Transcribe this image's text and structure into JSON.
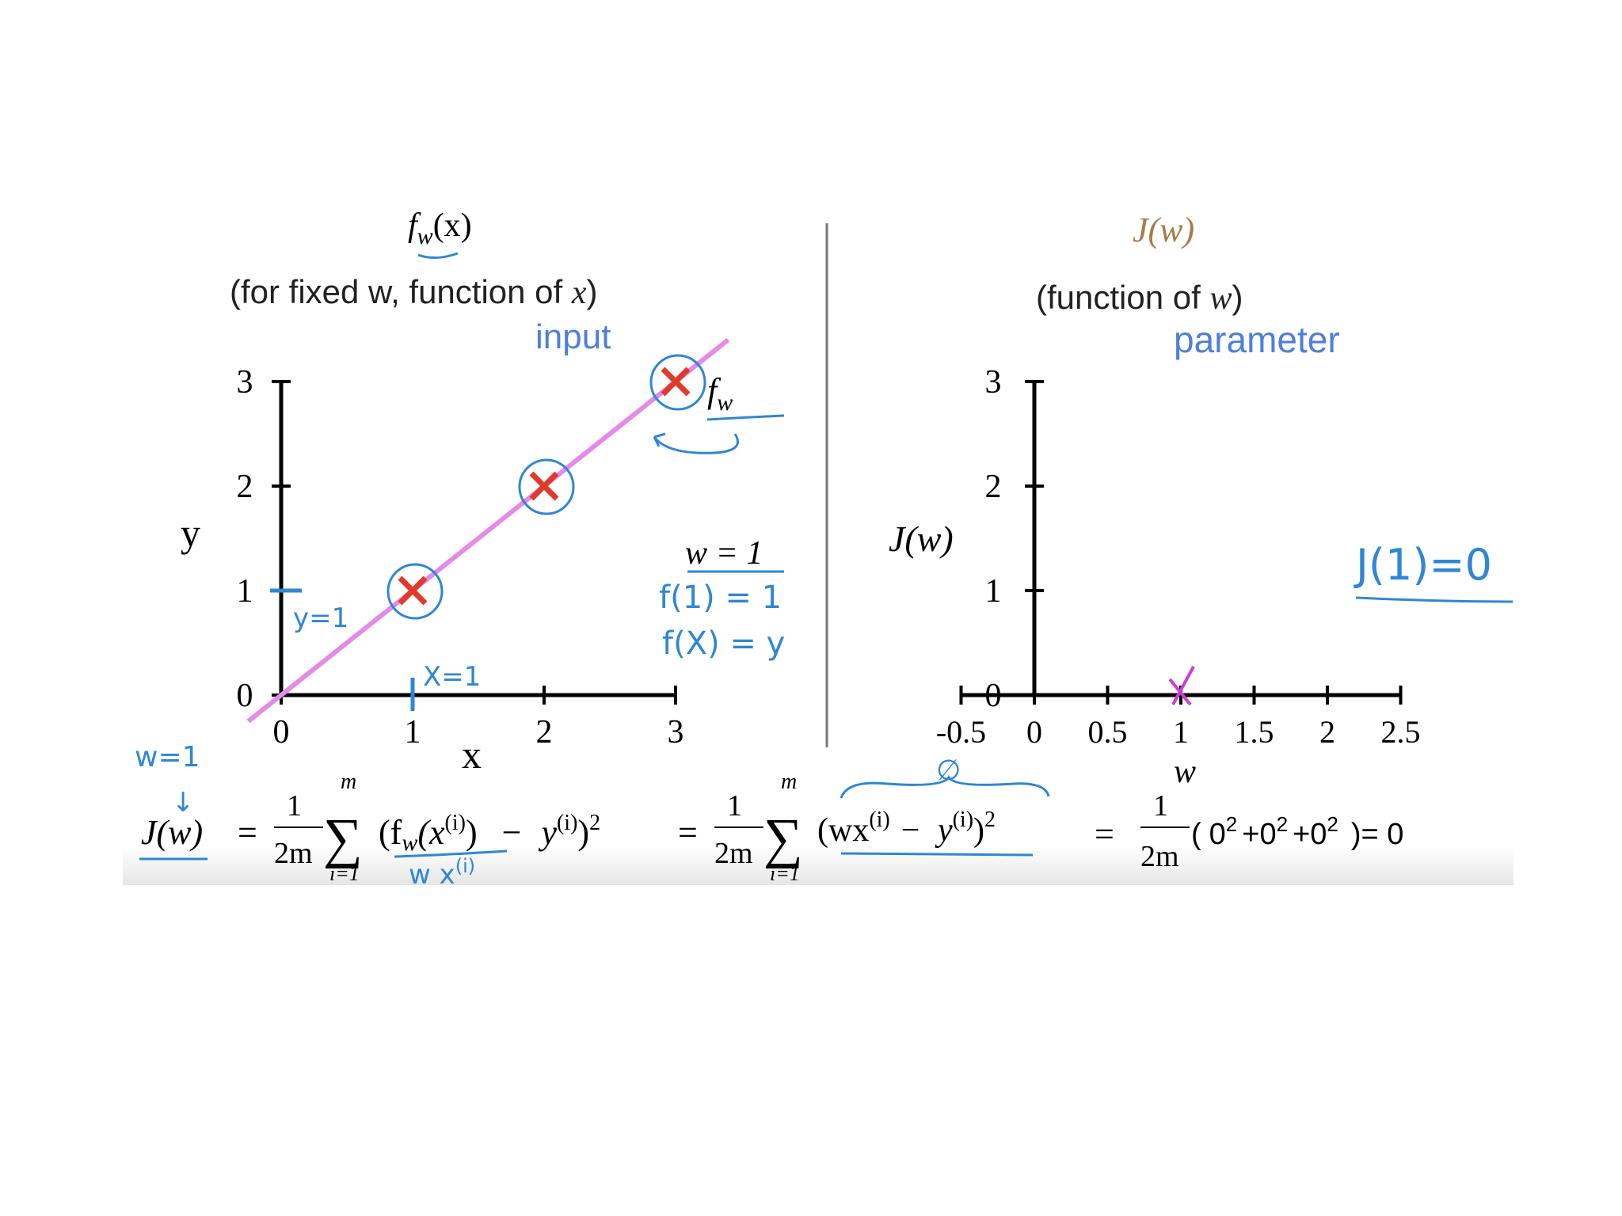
{
  "colors": {
    "axis": "#000000",
    "fit_line": "#e58ae8",
    "marker": "#e03a2a",
    "annotation": "#2f86d6",
    "label_blue": "#4f7fd9",
    "cost_title": "#a77b4a",
    "cost_marker": "#cc3fd0"
  },
  "left_panel": {
    "title_fn": "f",
    "title_sub": "w",
    "title_arg": "(x)",
    "subtitle_pre": "(for fixed w, function of ",
    "subtitle_var": "x",
    "subtitle_post": ")",
    "tag": "input",
    "ylabel": "y",
    "xlabel": "x",
    "line_label": "f",
    "line_label_sub": "w",
    "w_eq": "w = 1",
    "notes": [
      "f(1) = 1",
      "f(X) = y"
    ],
    "y_tick_note": "y=1",
    "x_tick_note": "X=1"
  },
  "right_panel": {
    "title": "J(w)",
    "subtitle_pre": "(function of ",
    "subtitle_var": "w",
    "subtitle_post": ")",
    "tag": "parameter",
    "ylabel": "J(w)",
    "xlabel": "w",
    "note": "J(1)=0"
  },
  "formula": {
    "w_note": "w=1",
    "arrow": "↓",
    "lhs": "J(w)",
    "eq": "=",
    "frac_num": "1",
    "frac_den": "2m",
    "sigma": "∑",
    "sum_top": "m",
    "sum_bottom": "i=1",
    "term1": "(f",
    "term1_sub": "w",
    "term1_arg": "(x",
    "sup_i": "(i)",
    "term1_close": ")",
    "minus": "−",
    "y_var": "y",
    "sq": ")",
    "two": "2",
    "under_note": "w x",
    "under_note_sup": "(i)",
    "term2": "(wx",
    "zero_note": "∅",
    "result_open": "(",
    "result_terms": "0",
    "plus": "+0",
    "result_close": ")= 0"
  },
  "chart_data": [
    {
      "type": "line",
      "title": "f_w(x)",
      "subtitle": "(for fixed w, function of x)",
      "xlabel": "x",
      "ylabel": "y",
      "xlim": [
        0,
        3
      ],
      "ylim": [
        0,
        3
      ],
      "x_ticks": [
        "0",
        "1",
        "2",
        "3"
      ],
      "y_ticks": [
        "0",
        "1",
        "2",
        "3"
      ],
      "series": [
        {
          "name": "f_w",
          "x": [
            -0.25,
            3.4
          ],
          "y": [
            -0.25,
            3.4
          ]
        }
      ],
      "points": [
        {
          "x": 1,
          "y": 1
        },
        {
          "x": 2,
          "y": 2
        },
        {
          "x": 3,
          "y": 3
        }
      ]
    },
    {
      "type": "scatter",
      "title": "J(w)",
      "subtitle": "(function of w)",
      "xlabel": "w",
      "ylabel": "J(w)",
      "xlim": [
        -0.5,
        2.5
      ],
      "ylim": [
        0,
        3
      ],
      "x_ticks": [
        "-0.5",
        "0",
        "0.5",
        "1",
        "1.5",
        "2",
        "2.5"
      ],
      "y_ticks": [
        "0",
        "1",
        "2",
        "3"
      ],
      "points": [
        {
          "x": 1,
          "y": 0
        }
      ]
    }
  ]
}
